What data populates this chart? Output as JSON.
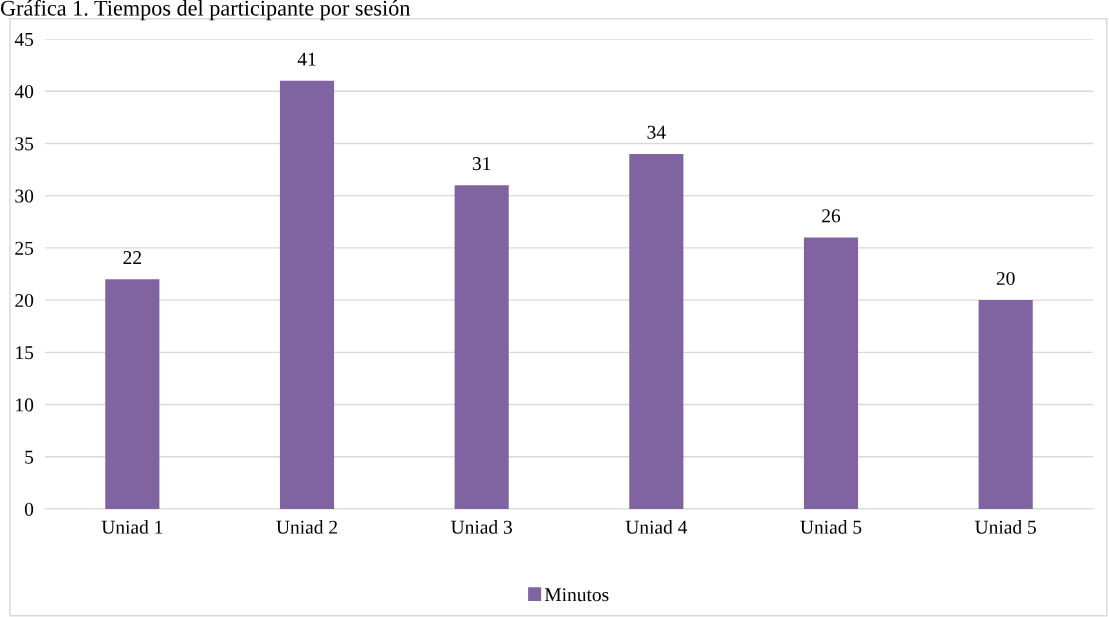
{
  "chart_data": {
    "type": "bar",
    "title": "Gráfica 1. Tiempos del participante por sesión",
    "categories": [
      "Uniad 1",
      "Uniad 2",
      "Uniad 3",
      "Uniad 4",
      "Uniad 5",
      "Uniad 5"
    ],
    "series": [
      {
        "name": "Minutos",
        "color": "#8064a2",
        "values": [
          22,
          41,
          31,
          34,
          26,
          20
        ]
      }
    ],
    "ylim": [
      0,
      45
    ],
    "yticks": [
      0,
      5,
      10,
      15,
      20,
      25,
      30,
      35,
      40,
      45
    ],
    "grid": "y",
    "legend": "bottom",
    "data_labels": true
  }
}
